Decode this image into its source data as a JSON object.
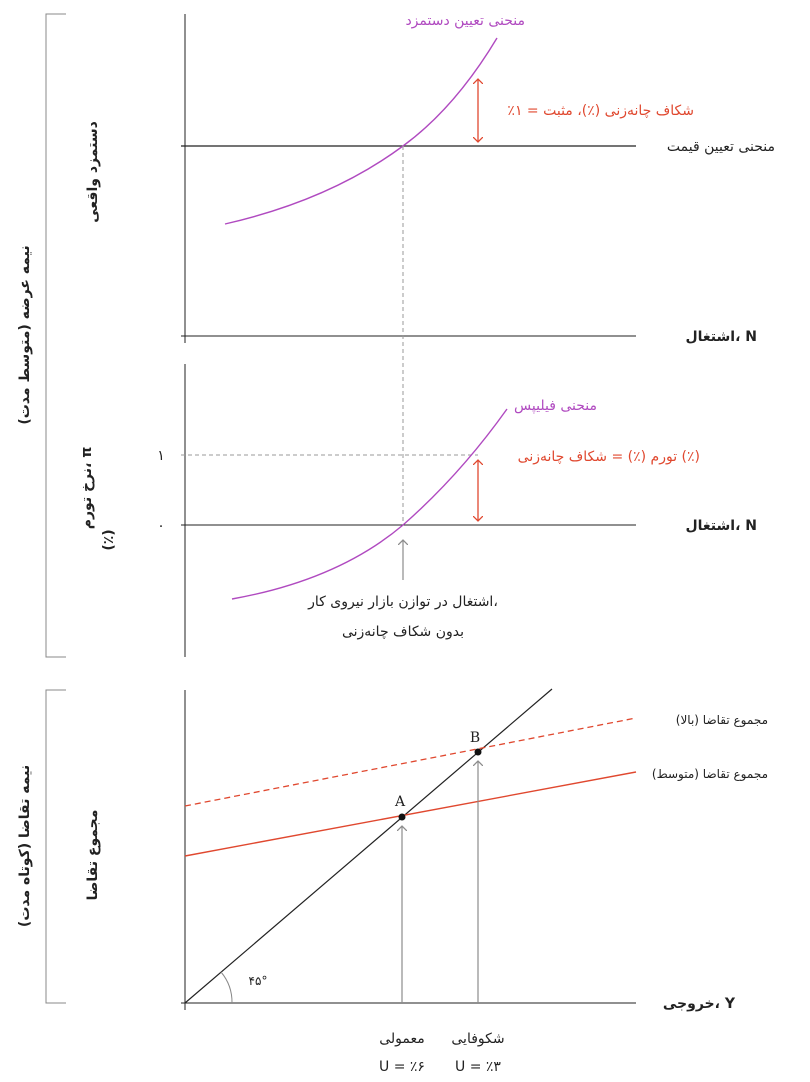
{
  "colors": {
    "purple": "#b04ac0",
    "red": "#e0482f",
    "axis": "#222222",
    "gray": "#9a9a9a",
    "bracket": "#888888"
  },
  "left_labels": {
    "supply_half": "نیمه عرضه (متوسط مدت)",
    "demand_half": "نیمه تقاضا (کوتاه مدت)",
    "real_wage": "دستمزد واقعی",
    "inflation_line1": "نرخ تورم، π",
    "inflation_line2": "(٪)",
    "aggregate_demand": "مجموع تقاضا"
  },
  "panel_top": {
    "wage_curve_label": "منحنی تعیین دستمزد",
    "price_curve_label": "منحنی تعیین قیمت",
    "gap_label": "٪۱ = شکاف چانه‌زنی (٪)، مثبت",
    "x_axis_label": "اشتغال، N"
  },
  "panel_middle": {
    "phillips_label": "منحنی فیلیپس",
    "inflation_label": "تورم (٪) = شکاف چانه‌زنی (٪)",
    "x_axis_label": "اشتغال، N",
    "tick_one": "۱",
    "tick_zero": "۰",
    "equilibrium_line1": "اشتغال در توازن بازار نیروی کار،",
    "equilibrium_line2": "بدون شکاف چانه‌زنی"
  },
  "panel_bottom": {
    "ad_high": "مجموع تقاضا (بالا)",
    "ad_medium": "مجموع تقاضا (متوسط)",
    "point_a": "A",
    "point_b": "B",
    "angle": "۴۵°",
    "x_axis_label": "خروجی، Y",
    "normal_label": "معمولی",
    "boom_label": "شکوفایی",
    "normal_u": "U = ٪۶",
    "boom_u": "U = ٪۳"
  }
}
